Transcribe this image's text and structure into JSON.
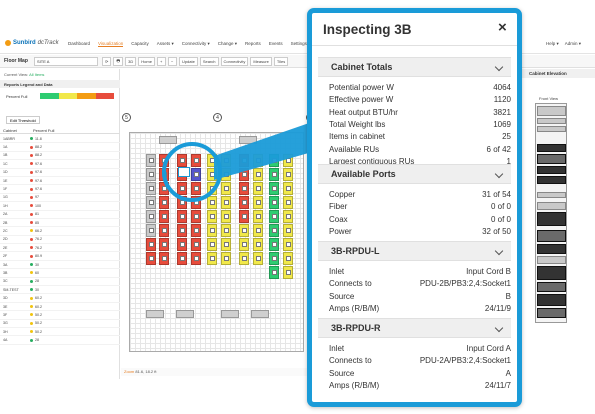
{
  "app": {
    "brand": "Sunbird",
    "brand_sub": "dcTrack",
    "nav": [
      "Dashboard",
      "Visualization",
      "Capacity",
      "Assets ▾",
      "Connectivity ▾",
      "Change ▾",
      "Reports",
      "Events",
      "Settings ▾"
    ],
    "nav_active_index": 1,
    "nav_right": [
      "Help ▾",
      "Admin ▾"
    ],
    "toolbar": {
      "title": "Floor Map",
      "location": "SITE A",
      "buttons": [
        "⟳",
        "🖶",
        "3D",
        "Home",
        "+",
        "−",
        "Update",
        "Search",
        "Connectivity",
        "Measure",
        "Tiles"
      ]
    },
    "sidebar": {
      "current_view_label": "Current View:",
      "current_view_value": "All Items",
      "section_title": "Reports Legend and Data",
      "percent_full_label": "Percent Full",
      "thresholds": [
        "0",
        "50",
        "75",
        "90"
      ],
      "edit_threshold": "Edit Threshold",
      "col_cabinet": "Cabinet",
      "col_percent": "Percent Full",
      "rows": [
        {
          "name": "1ABRR",
          "value": "11.8",
          "color": "#27ae60"
        },
        {
          "name": "1A",
          "value": "88.2",
          "color": "#e74c3c"
        },
        {
          "name": "1B",
          "value": "88.2",
          "color": "#e74c3c"
        },
        {
          "name": "1C",
          "value": "97.6",
          "color": "#e74c3c"
        },
        {
          "name": "1D",
          "value": "97.6",
          "color": "#e74c3c"
        },
        {
          "name": "1E",
          "value": "97.6",
          "color": "#e74c3c"
        },
        {
          "name": "1F",
          "value": "97.6",
          "color": "#e74c3c"
        },
        {
          "name": "1G",
          "value": "97",
          "color": "#e74c3c"
        },
        {
          "name": "1H",
          "value": "100",
          "color": "#e74c3c"
        },
        {
          "name": "2A",
          "value": "81",
          "color": "#e74c3c"
        },
        {
          "name": "2B",
          "value": "85",
          "color": "#e74c3c"
        },
        {
          "name": "2C",
          "value": "66.2",
          "color": "#f1c40f"
        },
        {
          "name": "2D",
          "value": "76.2",
          "color": "#e74c3c"
        },
        {
          "name": "2E",
          "value": "76.2",
          "color": "#e74c3c"
        },
        {
          "name": "2F",
          "value": "80.9",
          "color": "#e74c3c"
        },
        {
          "name": "3A",
          "value": "30",
          "color": "#27ae60"
        },
        {
          "name": "3B",
          "value": "60",
          "color": "#f1c40f"
        },
        {
          "name": "3C",
          "value": "28",
          "color": "#27ae60"
        },
        {
          "name": "SM-TEST",
          "value": "30",
          "color": "#27ae60"
        },
        {
          "name": "3D",
          "value": "60.2",
          "color": "#f1c40f"
        },
        {
          "name": "3E",
          "value": "60.2",
          "color": "#f1c40f"
        },
        {
          "name": "3F",
          "value": "50.2",
          "color": "#f1c40f"
        },
        {
          "name": "3G",
          "value": "50.2",
          "color": "#f1c40f"
        },
        {
          "name": "3H",
          "value": "50.2",
          "color": "#f1c40f"
        },
        {
          "name": "4A",
          "value": "28",
          "color": "#27ae60"
        }
      ]
    },
    "floor": {
      "markers": [
        "5",
        "4",
        "3"
      ],
      "status": "81.6, 18.2 ft",
      "status_prefix": "Zoom"
    },
    "right_panel": {
      "title": "Cabinet Elevation",
      "front_view": "Front View"
    }
  },
  "popup": {
    "title": "Inspecting 3B",
    "close_icon": "×",
    "sections": [
      {
        "title": "Cabinet Totals",
        "rows": [
          {
            "label": "Potential power W",
            "value": "4064"
          },
          {
            "label": "Effective power W",
            "value": "1120"
          },
          {
            "label": "Heat output BTU/hr",
            "value": "3821"
          },
          {
            "label": "Total Weight lbs",
            "value": "1069"
          },
          {
            "label": "Items in cabinet",
            "value": "25"
          },
          {
            "label": "Available RUs",
            "value": "6 of 42"
          },
          {
            "label": "Largest contiguous RUs",
            "value": "1"
          }
        ]
      },
      {
        "title": "Available Ports",
        "rows": [
          {
            "label": "Copper",
            "value": "31 of 54"
          },
          {
            "label": "Fiber",
            "value": "0 of 0"
          },
          {
            "label": "Coax",
            "value": "0 of 0"
          },
          {
            "label": "Power",
            "value": "32 of 50"
          }
        ]
      },
      {
        "title": "3B-RPDU-L",
        "rows": [
          {
            "label": "Inlet",
            "value": "Input Cord B"
          },
          {
            "label": "Connects to",
            "value": "PDU-2B/PB3:2,4:Socket1"
          },
          {
            "label": "Source",
            "value": "B"
          },
          {
            "label": "Amps (R/B/M)",
            "value": "24/11/9"
          }
        ]
      },
      {
        "title": "3B-RPDU-R",
        "rows": [
          {
            "label": "Inlet",
            "value": "Input Cord A"
          },
          {
            "label": "Connects to",
            "value": "PDU-2A/PB3:2,4:Socket1"
          },
          {
            "label": "Source",
            "value": "A"
          },
          {
            "label": "Amps (R/B/M)",
            "value": "24/11/7"
          }
        ]
      }
    ]
  },
  "colors": {
    "accent": "#1a9bd8",
    "red": "#e74c3c",
    "yellow": "#f1e84a",
    "green": "#2ecc71",
    "orange": "#e67e22"
  }
}
